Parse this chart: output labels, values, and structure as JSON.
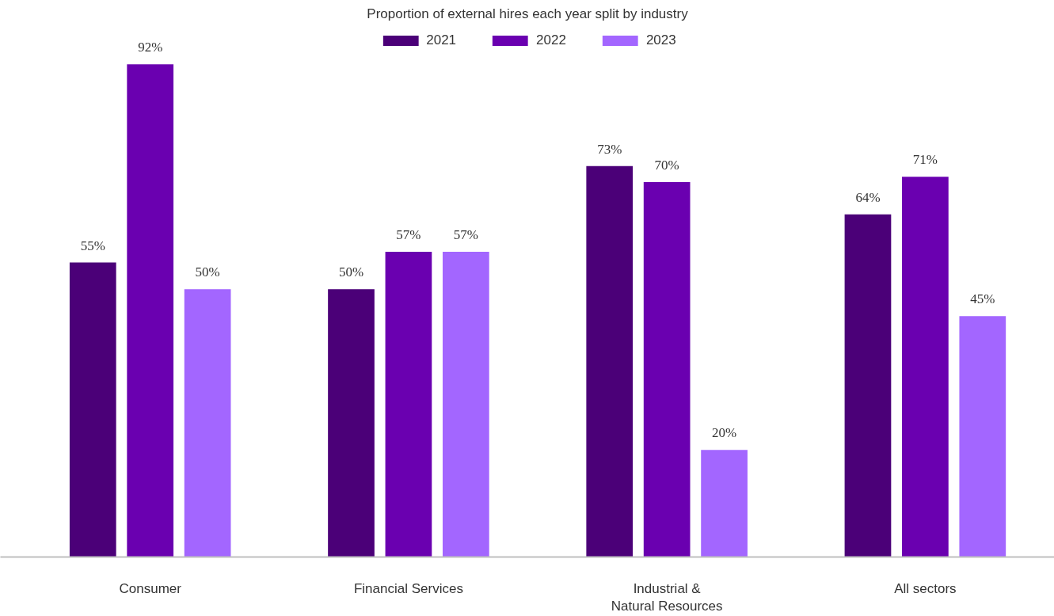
{
  "chart_data": {
    "type": "bar",
    "title": "Proportion of external hires each year split by industry",
    "categories": [
      "Consumer",
      "Financial Services",
      "Industrial &\nNatural Resources",
      "All sectors"
    ],
    "series": [
      {
        "name": "2021",
        "color": "#4b0078",
        "values": [
          55,
          50,
          73,
          64
        ],
        "value_labels": [
          "55%",
          "50%",
          "73%",
          "64%"
        ]
      },
      {
        "name": "2022",
        "color": "#6a00b0",
        "values": [
          92,
          57,
          70,
          71
        ],
        "value_labels": [
          "92%",
          "57%",
          "70%",
          "71%"
        ]
      },
      {
        "name": "2023",
        "color": "#a366ff",
        "values": [
          50,
          57,
          20,
          45
        ],
        "value_labels": [
          "50%",
          "57%",
          "20%",
          "45%"
        ]
      }
    ],
    "legend": "top",
    "grid": false
  }
}
